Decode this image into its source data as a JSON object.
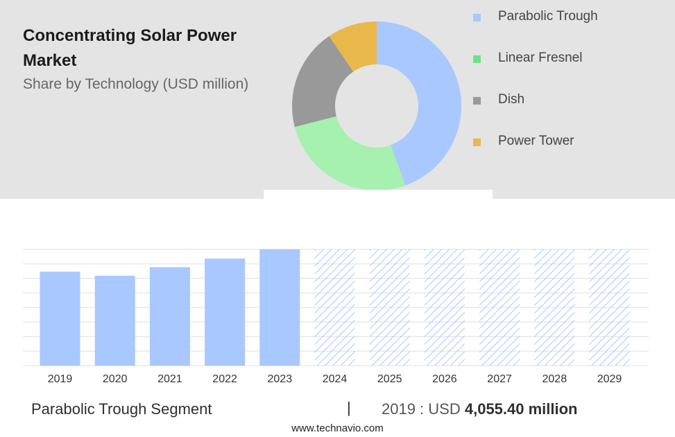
{
  "header": {
    "title": "Concentrating Solar Power Market",
    "subtitle": "Share by Technology (USD million)"
  },
  "colors": {
    "parabolic_trough": "#a9c8ff",
    "linear_fresnel": "#a6f0b0",
    "dish": "#999999",
    "power_tower": "#e8b84b",
    "forecast_hatch": "#a9c8ff",
    "grid": "#dddddd"
  },
  "legend": [
    {
      "label": "Parabolic Trough",
      "color": "#a9c8ff",
      "swatch_color": "#a9c8ff"
    },
    {
      "label": "Linear Fresnel",
      "color": "#a6f0b0",
      "swatch_color": "#6fe08a"
    },
    {
      "label": "Dish",
      "color": "#999999",
      "swatch_color": "#999999"
    },
    {
      "label": "Power Tower",
      "color": "#e8b84b",
      "swatch_color": "#e8b84b"
    }
  ],
  "chart_data": [
    {
      "type": "pie",
      "style": "donut",
      "categories": [
        "Parabolic Trough",
        "Linear Fresnel",
        "Dish",
        "Power Tower"
      ],
      "values": [
        44.5,
        26.5,
        19.5,
        9.5
      ],
      "unit": "percent share (estimated)"
    },
    {
      "type": "bar",
      "categories": [
        "2019",
        "2020",
        "2021",
        "2022",
        "2023",
        "2024",
        "2025",
        "2026",
        "2027",
        "2028",
        "2029"
      ],
      "values": [
        4055.4,
        3880,
        4250,
        4620,
        5020,
        5020,
        5020,
        5020,
        5020,
        5020,
        5020
      ],
      "forecast_start": "2024",
      "forecast_style": "hatched",
      "ylim": [
        0,
        5020
      ],
      "grid": true,
      "series_name": "Parabolic Trough"
    }
  ],
  "footer": {
    "segment": "Parabolic Trough Segment",
    "separator": "|",
    "year_prefix": "2019 : USD",
    "amount": "4,055.40 million"
  },
  "source": "www.technavio.com"
}
